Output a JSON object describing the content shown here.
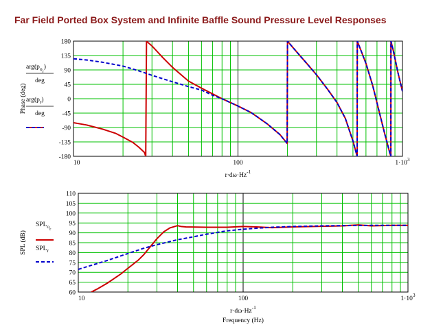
{
  "page": {
    "title": "Far Field Ported Box System and Infinite Baffle Sound Pressure Level Responses"
  },
  "colors": {
    "grid": "#00c000",
    "ported": "#cc0000",
    "infinite": "#0000cc",
    "title": "#8b1a1a"
  },
  "chart_data": [
    {
      "type": "line",
      "name": "phase",
      "xscale": "log",
      "xlim": [
        10,
        1000
      ],
      "ylim": [
        -180,
        180
      ],
      "x_ticks": [
        "10",
        "100",
        "1·10"
      ],
      "x_ticks_sup": [
        "",
        "",
        "3"
      ],
      "y_ticks": [
        180,
        135,
        90,
        45,
        0,
        -45,
        -90,
        -135,
        -180
      ],
      "ylabel": "Phase (deg)",
      "xlabel": "r·dω·Hz",
      "xlabel_sup": "-1",
      "legend": [
        {
          "top": "arg(p",
          "sub": "o",
          "sub2": "r",
          "close": ")",
          "bottom": "deg",
          "style": "solid"
        },
        {
          "top": "arg(p",
          "sub": "r",
          "sub2": "",
          "close": ")",
          "bottom": "deg",
          "style": "dashed"
        }
      ],
      "series": [
        {
          "key": "ported",
          "style": "solid",
          "points": [
            [
              10,
              -75
            ],
            [
              12,
              -82
            ],
            [
              15,
              -95
            ],
            [
              18,
              -108
            ],
            [
              20,
              -120
            ],
            [
              23,
              -137
            ],
            [
              25,
              -152
            ],
            [
              27,
              -168
            ],
            [
              27.5,
              -180
            ],
            [
              27.8,
              180
            ],
            [
              28,
              178
            ],
            [
              30,
              165
            ],
            [
              35,
              128
            ],
            [
              40,
              98
            ],
            [
              50,
              55
            ],
            [
              60,
              33
            ],
            [
              80,
              0
            ],
            [
              100,
              -23
            ],
            [
              120,
              -43
            ],
            [
              150,
              -78
            ],
            [
              180,
              -112
            ],
            [
              199,
              -140
            ],
            [
              200,
              180
            ],
            [
              220,
              155
            ],
            [
              260,
              112
            ],
            [
              300,
              75
            ],
            [
              350,
              30
            ],
            [
              400,
              -12
            ],
            [
              450,
              -62
            ],
            [
              500,
              -132
            ],
            [
              530,
              -180
            ],
            [
              531,
              180
            ],
            [
              560,
              150
            ],
            [
              600,
              110
            ],
            [
              660,
              40
            ],
            [
              720,
              -38
            ],
            [
              780,
              -110
            ],
            [
              840,
              -172
            ],
            [
              850,
              -180
            ],
            [
              851,
              180
            ],
            [
              880,
              150
            ],
            [
              940,
              80
            ],
            [
              1000,
              23
            ]
          ]
        },
        {
          "key": "infinite",
          "style": "dashed",
          "points": [
            [
              10,
              125
            ],
            [
              12,
              121
            ],
            [
              15,
              114
            ],
            [
              20,
              102
            ],
            [
              25,
              87
            ],
            [
              30,
              73
            ],
            [
              40,
              53
            ],
            [
              50,
              38
            ],
            [
              60,
              27
            ],
            [
              70,
              11
            ],
            [
              80,
              0
            ],
            [
              100,
              -23
            ],
            [
              120,
              -43
            ],
            [
              150,
              -78
            ],
            [
              180,
              -112
            ],
            [
              199,
              -140
            ],
            [
              200,
              180
            ],
            [
              220,
              155
            ],
            [
              260,
              112
            ],
            [
              300,
              75
            ],
            [
              350,
              30
            ],
            [
              400,
              -12
            ],
            [
              450,
              -62
            ],
            [
              500,
              -132
            ],
            [
              530,
              -180
            ],
            [
              531,
              180
            ],
            [
              560,
              150
            ],
            [
              600,
              110
            ],
            [
              660,
              40
            ],
            [
              720,
              -38
            ],
            [
              780,
              -110
            ],
            [
              840,
              -172
            ],
            [
              850,
              -180
            ],
            [
              851,
              180
            ],
            [
              880,
              150
            ],
            [
              940,
              80
            ],
            [
              1000,
              23
            ]
          ]
        }
      ]
    },
    {
      "type": "line",
      "name": "spl",
      "xscale": "log",
      "xlim": [
        10,
        1000
      ],
      "ylim": [
        60,
        110
      ],
      "x_ticks": [
        "10",
        "100",
        "1·10"
      ],
      "x_ticks_sup": [
        "",
        "",
        "3"
      ],
      "y_ticks": [
        110,
        105,
        100,
        95,
        90,
        85,
        80,
        75,
        70,
        65,
        60
      ],
      "ylabel": "SPL (dB)",
      "xlabel": "r·dω·Hz",
      "xlabel_sup": "-1",
      "xlabel2": "Frequency (Hz)",
      "legend": [
        {
          "top": "SPL",
          "sub": "o",
          "sub2": "r",
          "style": "solid"
        },
        {
          "top": "SPL",
          "sub": "r",
          "sub2": "",
          "style": "dashed"
        }
      ],
      "series": [
        {
          "key": "ported",
          "style": "solid",
          "points": [
            [
              12,
              60
            ],
            [
              13,
              61.5
            ],
            [
              15,
              64.5
            ],
            [
              18,
              69
            ],
            [
              20,
              72
            ],
            [
              23,
              76
            ],
            [
              25,
              79
            ],
            [
              28,
              84
            ],
            [
              30,
              87
            ],
            [
              33,
              90.5
            ],
            [
              36,
              92.5
            ],
            [
              40,
              93.6
            ],
            [
              42,
              93.2
            ],
            [
              45,
              93
            ],
            [
              60,
              92.8
            ],
            [
              80,
              92.8
            ],
            [
              100,
              93.2
            ],
            [
              120,
              93
            ],
            [
              150,
              92.6
            ],
            [
              200,
              93
            ],
            [
              300,
              93.3
            ],
            [
              400,
              93.5
            ],
            [
              500,
              94
            ],
            [
              600,
              93.5
            ],
            [
              800,
              93.8
            ],
            [
              1000,
              93.8
            ]
          ]
        },
        {
          "key": "infinite",
          "style": "dashed",
          "points": [
            [
              10,
              71.5
            ],
            [
              12,
              73.5
            ],
            [
              15,
              76
            ],
            [
              20,
              79.5
            ],
            [
              25,
              82.2
            ],
            [
              30,
              84
            ],
            [
              40,
              86.5
            ],
            [
              50,
              88
            ],
            [
              60,
              89.3
            ],
            [
              80,
              91
            ],
            [
              100,
              91.8
            ],
            [
              120,
              92.3
            ],
            [
              150,
              92.8
            ],
            [
              200,
              93.2
            ],
            [
              300,
              93.5
            ],
            [
              500,
              93.7
            ],
            [
              700,
              93.8
            ],
            [
              1000,
              93.8
            ]
          ]
        }
      ]
    }
  ]
}
